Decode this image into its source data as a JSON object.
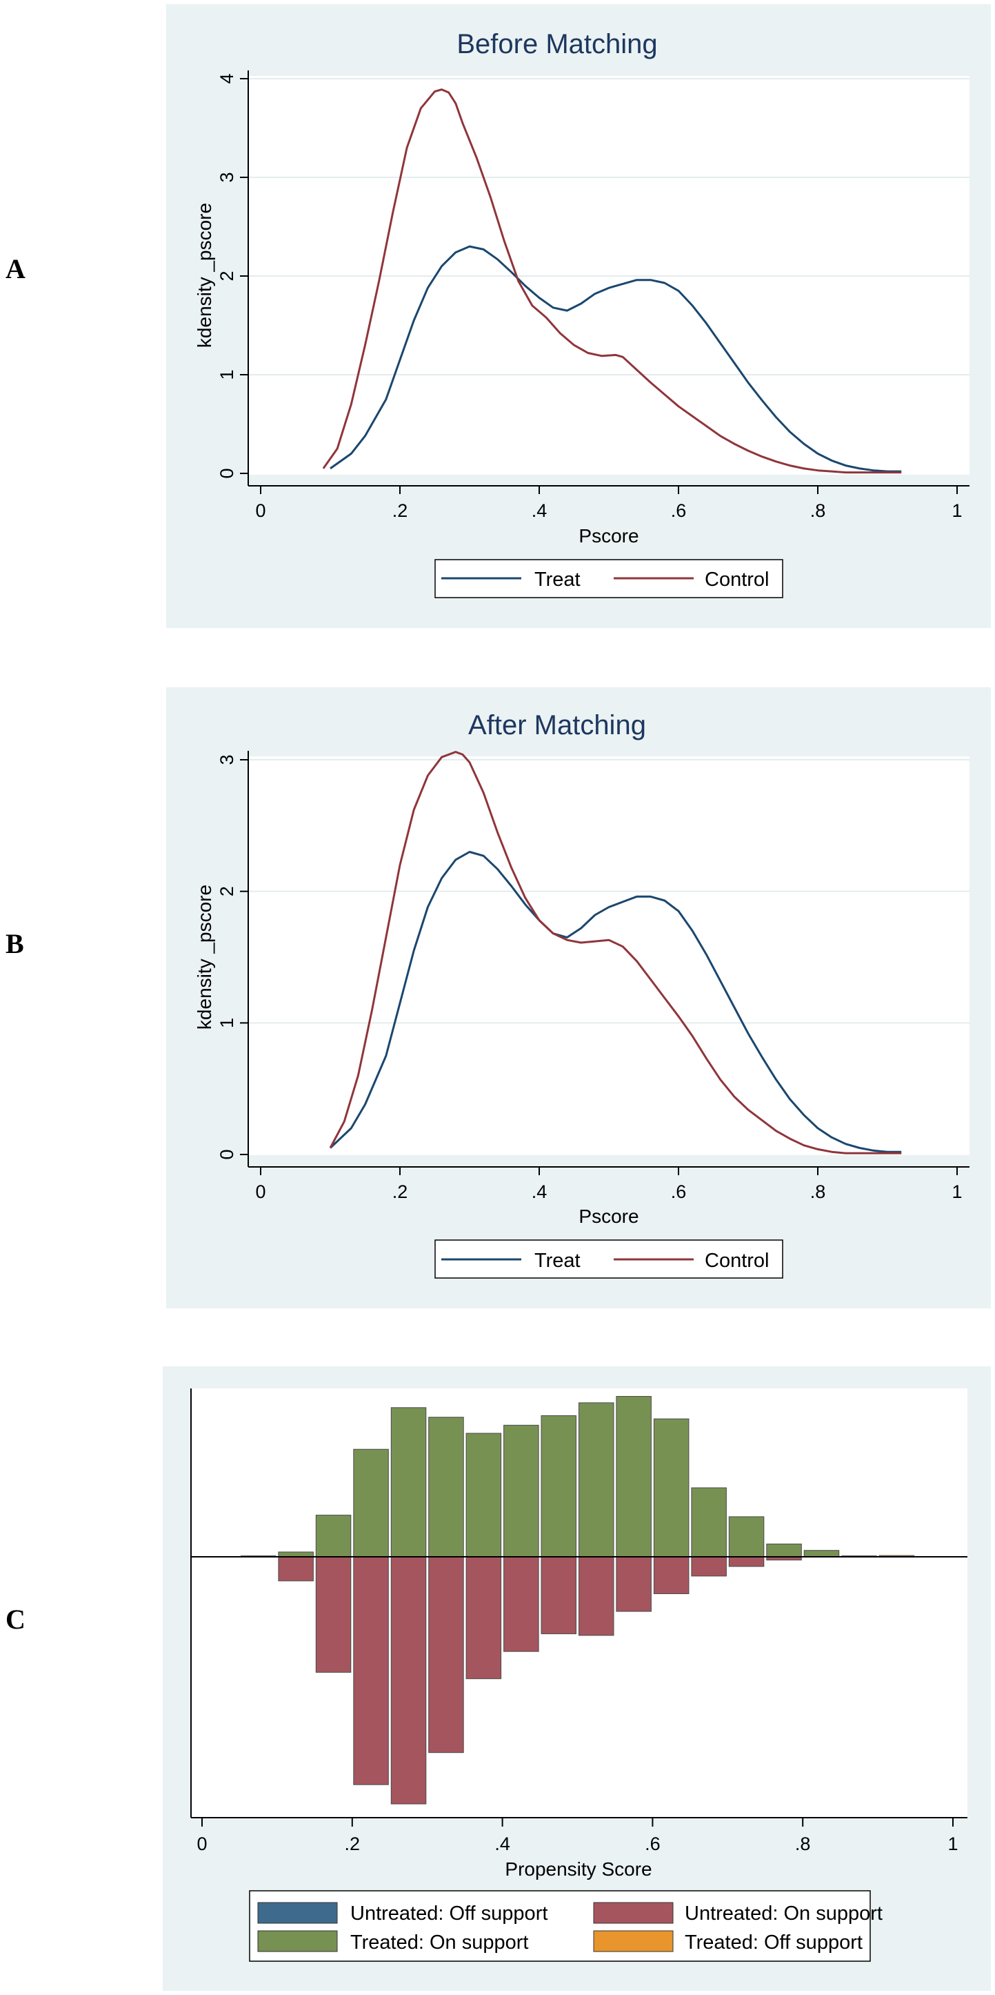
{
  "panel_letters": [
    "A",
    "B",
    "C"
  ],
  "chart_data": [
    {
      "type": "line",
      "title": "Before Matching",
      "xlabel": "Pscore",
      "ylabel": "kdensity _pscore",
      "xlim": [
        0,
        1
      ],
      "ylim": [
        0,
        4
      ],
      "xticks": [
        "0",
        ".2",
        ".4",
        ".6",
        ".8",
        "1"
      ],
      "yticks": [
        "0",
        "1",
        "2",
        "3",
        "4"
      ],
      "grid": true,
      "legend_position": "bottom",
      "series": [
        {
          "name": "Treat",
          "color": "#1a476f",
          "x": [
            0.1,
            0.13,
            0.15,
            0.18,
            0.2,
            0.22,
            0.24,
            0.26,
            0.28,
            0.3,
            0.32,
            0.34,
            0.36,
            0.38,
            0.4,
            0.42,
            0.44,
            0.46,
            0.48,
            0.5,
            0.52,
            0.54,
            0.56,
            0.58,
            0.6,
            0.62,
            0.64,
            0.66,
            0.68,
            0.7,
            0.72,
            0.74,
            0.76,
            0.78,
            0.8,
            0.82,
            0.84,
            0.86,
            0.88,
            0.9,
            0.92
          ],
          "y": [
            0.05,
            0.2,
            0.38,
            0.75,
            1.15,
            1.55,
            1.88,
            2.1,
            2.24,
            2.3,
            2.27,
            2.17,
            2.04,
            1.9,
            1.78,
            1.68,
            1.65,
            1.72,
            1.82,
            1.88,
            1.92,
            1.96,
            1.96,
            1.93,
            1.85,
            1.7,
            1.52,
            1.32,
            1.12,
            0.92,
            0.74,
            0.57,
            0.42,
            0.3,
            0.2,
            0.13,
            0.08,
            0.05,
            0.03,
            0.02,
            0.02
          ]
        },
        {
          "name": "Control",
          "color": "#90353b",
          "x": [
            0.09,
            0.11,
            0.13,
            0.15,
            0.17,
            0.19,
            0.21,
            0.23,
            0.25,
            0.26,
            0.27,
            0.28,
            0.29,
            0.31,
            0.33,
            0.35,
            0.37,
            0.39,
            0.41,
            0.43,
            0.45,
            0.47,
            0.49,
            0.51,
            0.52,
            0.54,
            0.56,
            0.58,
            0.6,
            0.62,
            0.64,
            0.66,
            0.68,
            0.7,
            0.72,
            0.74,
            0.76,
            0.78,
            0.8,
            0.82,
            0.84,
            0.86,
            0.88,
            0.9,
            0.92
          ],
          "y": [
            0.05,
            0.25,
            0.7,
            1.3,
            1.95,
            2.65,
            3.3,
            3.7,
            3.87,
            3.89,
            3.86,
            3.75,
            3.55,
            3.2,
            2.8,
            2.35,
            1.95,
            1.7,
            1.58,
            1.42,
            1.3,
            1.22,
            1.19,
            1.2,
            1.18,
            1.05,
            0.92,
            0.8,
            0.68,
            0.58,
            0.48,
            0.38,
            0.3,
            0.23,
            0.17,
            0.12,
            0.08,
            0.05,
            0.03,
            0.02,
            0.01,
            0.01,
            0.01,
            0.01,
            0.01
          ]
        }
      ]
    },
    {
      "type": "line",
      "title": "After Matching",
      "xlabel": "Pscore",
      "ylabel": "kdensity _pscore",
      "xlim": [
        0,
        1
      ],
      "ylim": [
        0,
        3
      ],
      "xticks": [
        "0",
        ".2",
        ".4",
        ".6",
        ".8",
        "1"
      ],
      "yticks": [
        "0",
        "1",
        "2",
        "3"
      ],
      "grid": true,
      "legend_position": "bottom",
      "series": [
        {
          "name": "Treat",
          "color": "#1a476f",
          "x": [
            0.1,
            0.13,
            0.15,
            0.18,
            0.2,
            0.22,
            0.24,
            0.26,
            0.28,
            0.3,
            0.32,
            0.34,
            0.36,
            0.38,
            0.4,
            0.42,
            0.44,
            0.46,
            0.48,
            0.5,
            0.52,
            0.54,
            0.56,
            0.58,
            0.6,
            0.62,
            0.64,
            0.66,
            0.68,
            0.7,
            0.72,
            0.74,
            0.76,
            0.78,
            0.8,
            0.82,
            0.84,
            0.86,
            0.88,
            0.9,
            0.92
          ],
          "y": [
            0.05,
            0.2,
            0.38,
            0.75,
            1.15,
            1.55,
            1.88,
            2.1,
            2.24,
            2.3,
            2.27,
            2.17,
            2.04,
            1.9,
            1.78,
            1.68,
            1.65,
            1.72,
            1.82,
            1.88,
            1.92,
            1.96,
            1.96,
            1.93,
            1.85,
            1.7,
            1.52,
            1.32,
            1.12,
            0.92,
            0.74,
            0.57,
            0.42,
            0.3,
            0.2,
            0.13,
            0.08,
            0.05,
            0.03,
            0.02,
            0.02
          ]
        },
        {
          "name": "Control",
          "color": "#90353b",
          "x": [
            0.1,
            0.12,
            0.14,
            0.16,
            0.18,
            0.2,
            0.22,
            0.24,
            0.26,
            0.28,
            0.29,
            0.3,
            0.32,
            0.34,
            0.36,
            0.38,
            0.4,
            0.42,
            0.44,
            0.46,
            0.48,
            0.5,
            0.52,
            0.54,
            0.56,
            0.58,
            0.6,
            0.62,
            0.64,
            0.66,
            0.68,
            0.7,
            0.72,
            0.74,
            0.76,
            0.78,
            0.8,
            0.82,
            0.84,
            0.86,
            0.88,
            0.9,
            0.92
          ],
          "y": [
            0.05,
            0.25,
            0.6,
            1.1,
            1.65,
            2.2,
            2.62,
            2.88,
            3.02,
            3.06,
            3.04,
            2.98,
            2.75,
            2.45,
            2.18,
            1.95,
            1.78,
            1.68,
            1.63,
            1.61,
            1.62,
            1.63,
            1.58,
            1.47,
            1.33,
            1.19,
            1.05,
            0.9,
            0.73,
            0.57,
            0.44,
            0.34,
            0.26,
            0.18,
            0.12,
            0.07,
            0.04,
            0.02,
            0.01,
            0.01,
            0.01,
            0.01,
            0.01
          ]
        }
      ]
    },
    {
      "type": "bar",
      "subtype": "mirrored histogram",
      "xlabel": "Propensity Score",
      "xlim": [
        0,
        1
      ],
      "xticks": [
        "0",
        ".2",
        ".4",
        ".6",
        ".8",
        "1"
      ],
      "legend_position": "bottom",
      "legend": [
        {
          "name": "Untreated: Off support",
          "color": "#3e6a8e"
        },
        {
          "name": "Untreated: On support",
          "color": "#a5555e"
        },
        {
          "name": "Treated: On support",
          "color": "#779153"
        },
        {
          "name": "Treated: Off support",
          "color": "#e8952d"
        }
      ],
      "bin_width": 0.05,
      "series": [
        {
          "name": "Treated: On support",
          "color": "#779153",
          "bin_centers": [
            0.075,
            0.125,
            0.175,
            0.225,
            0.275,
            0.325,
            0.375,
            0.425,
            0.475,
            0.525,
            0.575,
            0.625,
            0.675,
            0.725,
            0.775,
            0.825,
            0.875
          ],
          "heights": [
            0.3,
            1.5,
            13.0,
            33.5,
            46.5,
            43.5,
            38.5,
            41.0,
            44.0,
            48.0,
            50.0,
            43.0,
            21.5,
            12.5,
            4.0,
            2.0,
            0.3
          ]
        },
        {
          "name": "Untreated: On support",
          "color": "#a5555e",
          "bin_centers": [
            0.125,
            0.175,
            0.225,
            0.275,
            0.325,
            0.375,
            0.425,
            0.475,
            0.525,
            0.575,
            0.625,
            0.675,
            0.725,
            0.775
          ],
          "heights": [
            -7.5,
            -36.0,
            -71.0,
            -77.0,
            -61.0,
            -38.0,
            -29.5,
            -24.0,
            -24.5,
            -17.0,
            -11.5,
            -6.0,
            -3.0,
            -1.0
          ]
        },
        {
          "name": "Treated: Off support",
          "color": "#e8952d",
          "bin_centers": [
            0.925
          ],
          "heights": [
            0.4
          ]
        }
      ]
    }
  ]
}
